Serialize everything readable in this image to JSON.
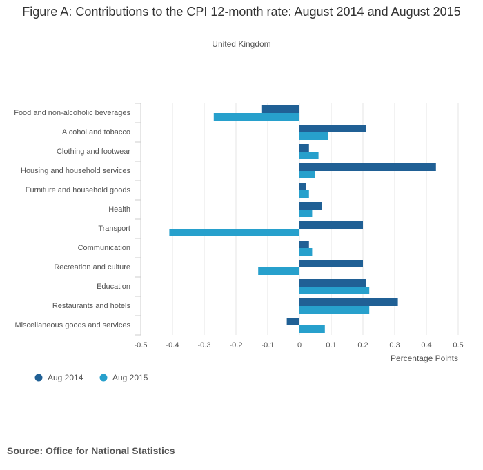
{
  "chart_data": {
    "type": "bar",
    "orientation": "horizontal",
    "title": "Figure A: Contributions to the CPI 12-month rate: August 2014 and August 2015",
    "subtitle": "United Kingdom",
    "source": "Source: Office for National Statistics",
    "x_label": "Percentage Points",
    "categories": [
      "Food and non-alcoholic beverages",
      "Alcohol and tobacco",
      "Clothing and footwear",
      "Housing and household services",
      "Furniture and household goods",
      "Health",
      "Transport",
      "Communication",
      "Recreation and culture",
      "Education",
      "Restaurants and hotels",
      "Miscellaneous goods and services"
    ],
    "series": [
      {
        "name": "Aug 2014",
        "color": "#206095",
        "values": [
          -0.12,
          0.21,
          0.03,
          0.43,
          0.02,
          0.07,
          0.2,
          0.03,
          0.2,
          0.21,
          0.31,
          -0.04
        ]
      },
      {
        "name": "Aug 2015",
        "color": "#27a0cc",
        "values": [
          -0.27,
          0.09,
          0.06,
          0.05,
          0.03,
          0.04,
          -0.41,
          0.04,
          -0.13,
          0.22,
          0.22,
          0.08
        ]
      }
    ],
    "xlim": [
      -0.5,
      0.5
    ],
    "xticks": [
      -0.5,
      -0.4,
      -0.3,
      -0.2,
      -0.1,
      0,
      0.1,
      0.2,
      0.3,
      0.4,
      0.5
    ],
    "grid": true
  }
}
